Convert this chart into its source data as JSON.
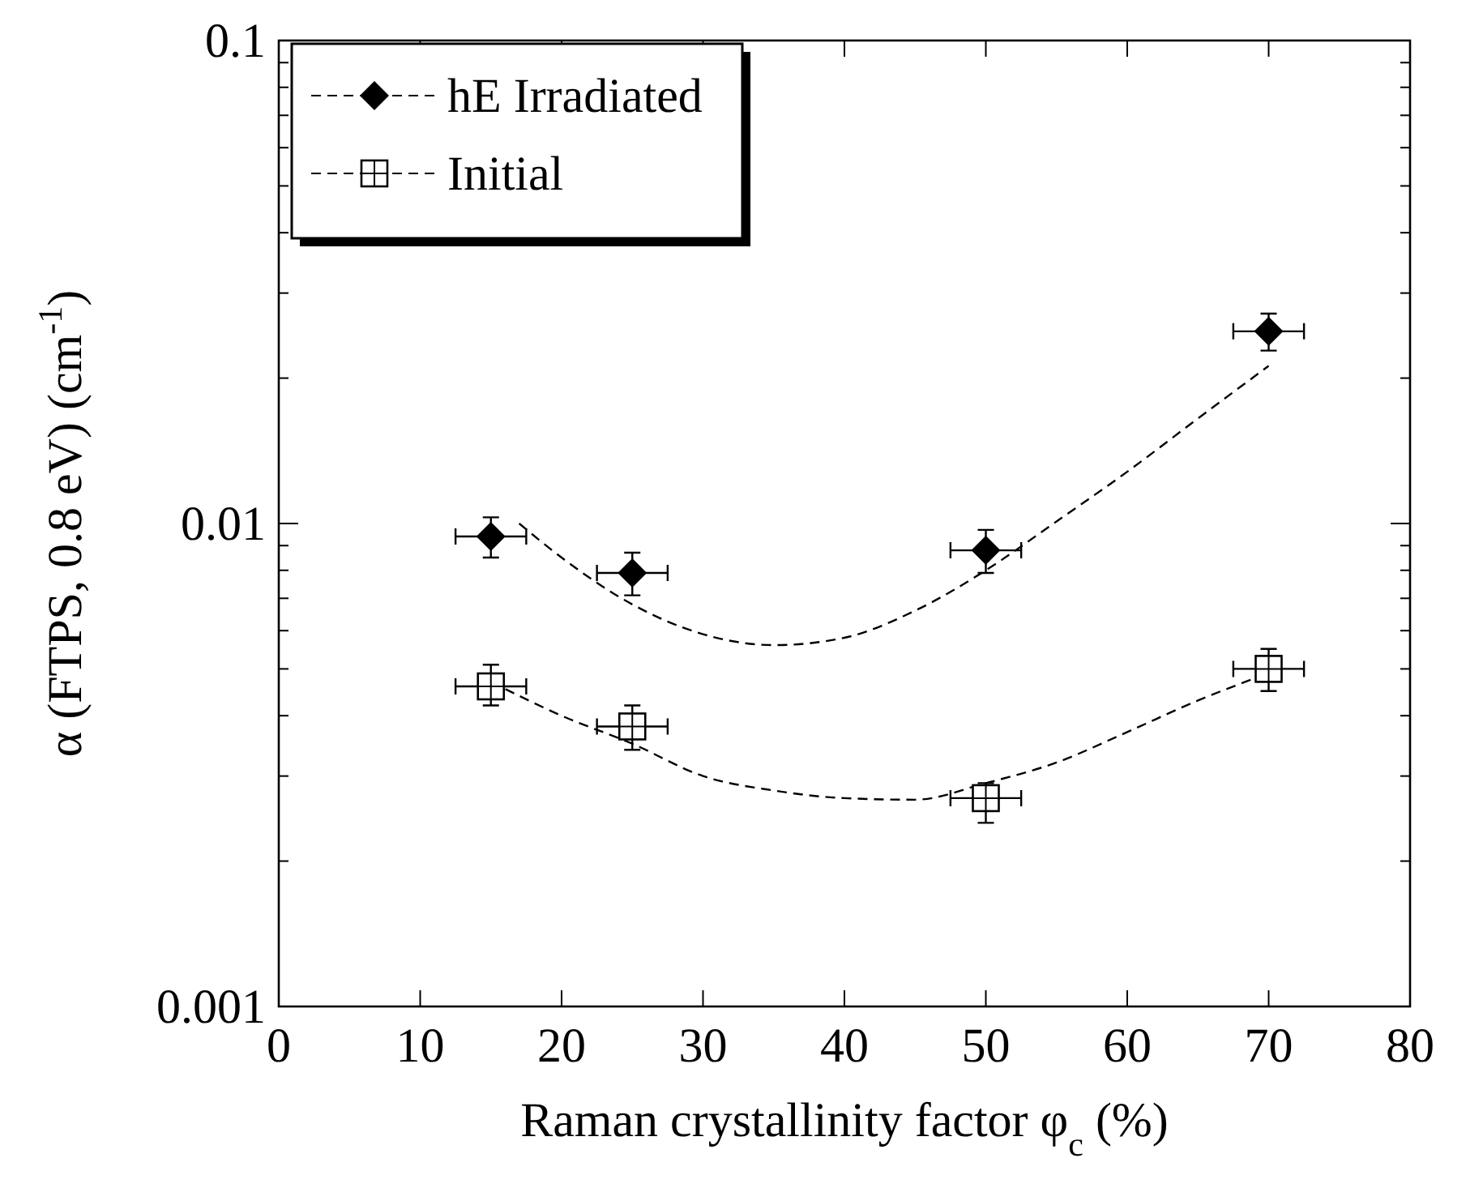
{
  "chart_data": {
    "type": "scatter",
    "xlabel": "Raman crystallinity factor φ$_{c}$ (%)",
    "ylabel": "α (FTPS, 0.8 eV) (cm$^{-1}$)",
    "log": "y",
    "xlim": [
      0,
      80
    ],
    "xticks": [
      0,
      10,
      20,
      30,
      40,
      50,
      60,
      70,
      80
    ],
    "ylim": [
      0.001,
      0.1
    ],
    "yticks": [
      {
        "value": 0.001,
        "label": "0.001"
      },
      {
        "value": 0.002,
        "label": null
      },
      {
        "value": 0.003,
        "label": null
      },
      {
        "value": 0.004,
        "label": null
      },
      {
        "value": 0.005,
        "label": null
      },
      {
        "value": 0.006,
        "label": null
      },
      {
        "value": 0.007,
        "label": null
      },
      {
        "value": 0.008,
        "label": null
      },
      {
        "value": 0.009,
        "label": null
      },
      {
        "value": 0.01,
        "label": "0.01"
      },
      {
        "value": 0.02,
        "label": null
      },
      {
        "value": 0.03,
        "label": null
      },
      {
        "value": 0.04,
        "label": null
      },
      {
        "value": 0.05,
        "label": null
      },
      {
        "value": 0.06,
        "label": null
      },
      {
        "value": 0.07,
        "label": null
      },
      {
        "value": 0.08,
        "label": null
      },
      {
        "value": 0.09,
        "label": null
      },
      {
        "value": 0.1,
        "label": "0.1"
      }
    ],
    "grid": false,
    "legend": "top left",
    "series": [
      {
        "name": "hE Irradiated",
        "marker": "diamond",
        "line_style": "dashed",
        "color": "#000000",
        "x": [
          15,
          25,
          50,
          70
        ],
        "values": [
          0.0094,
          0.0079,
          0.0088,
          0.025
        ],
        "errors": [
          [
            0.0085,
            0.0103
          ],
          [
            0.0071,
            0.0087
          ],
          [
            0.0079,
            0.0097
          ],
          [
            0.0228,
            0.0272
          ]
        ],
        "xerrors": [
          2.5,
          2.5,
          2.5,
          2.5
        ]
      },
      {
        "name": "Initial",
        "marker": "square",
        "line_style": "dashed",
        "color": "#000000",
        "x": [
          15,
          25,
          50,
          70
        ],
        "values": [
          0.0046,
          0.0038,
          0.0027,
          0.005
        ],
        "errors": [
          [
            0.0042,
            0.0051
          ],
          [
            0.0034,
            0.0042
          ],
          [
            0.0024,
            0.0029
          ],
          [
            0.0045,
            0.0055
          ]
        ],
        "xerrors": [
          2.5,
          2.5,
          2.5,
          2.5
        ]
      },
      {
        "type": "line",
        "line_style": "dashed",
        "color": "#000000",
        "x": [
          17,
          20,
          25,
          30,
          35,
          40,
          45,
          50,
          55,
          60,
          65,
          70
        ],
        "values": [
          0.01,
          0.0085,
          0.0068,
          0.0059,
          0.0056,
          0.0058,
          0.0066,
          0.008,
          0.0101,
          0.0128,
          0.0165,
          0.0212
        ]
      },
      {
        "type": "line",
        "line_style": "dashed",
        "color": "#000000",
        "x": [
          15,
          20,
          25,
          30,
          35,
          40,
          45,
          50,
          55,
          60,
          65,
          70
        ],
        "values": [
          0.0047,
          0.004,
          0.0035,
          0.003,
          0.0028,
          0.0027,
          0.00268,
          0.0029,
          0.0032,
          0.0037,
          0.0043,
          0.0049
        ]
      }
    ]
  }
}
